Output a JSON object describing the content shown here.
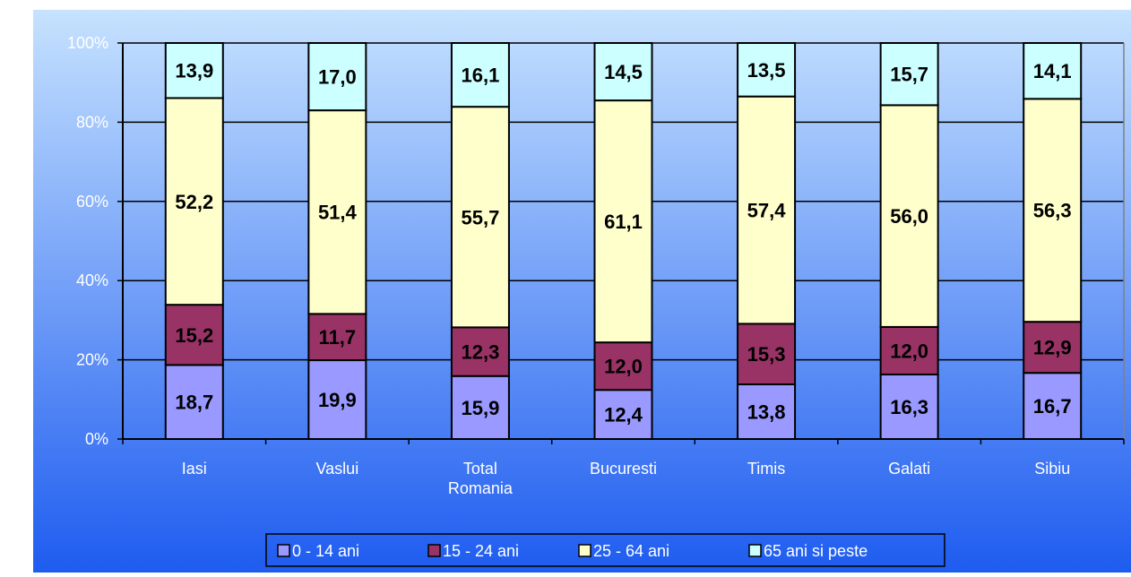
{
  "chart_data": {
    "type": "bar",
    "stacked": true,
    "percent_stacked": true,
    "categories": [
      "Iasi",
      "Vaslui",
      "Total Romania",
      "Bucuresti",
      "Timis",
      "Galati",
      "Sibiu"
    ],
    "category_labels": [
      [
        "Iasi"
      ],
      [
        "Vaslui"
      ],
      [
        "Total",
        "Romania"
      ],
      [
        "Bucuresti"
      ],
      [
        "Timis"
      ],
      [
        "Galati"
      ],
      [
        "Sibiu"
      ]
    ],
    "series": [
      {
        "name": "0 - 14 ani",
        "values": [
          18.7,
          19.9,
          15.9,
          12.4,
          13.8,
          16.3,
          16.7
        ],
        "labels": [
          "18,7",
          "19,9",
          "15,9",
          "12,4",
          "13,8",
          "16,3",
          "16,7"
        ],
        "color": "#9999FF"
      },
      {
        "name": "15 - 24 ani",
        "values": [
          15.2,
          11.7,
          12.3,
          12.0,
          15.3,
          12.0,
          12.9
        ],
        "labels": [
          "15,2",
          "11,7",
          "12,3",
          "12,0",
          "15,3",
          "12,0",
          "12,9"
        ],
        "color": "#993366"
      },
      {
        "name": "25 - 64 ani",
        "values": [
          52.2,
          51.4,
          55.7,
          61.1,
          57.4,
          56.0,
          56.3
        ],
        "labels": [
          "52,2",
          "51,4",
          "55,7",
          "61,1",
          "57,4",
          "56,0",
          "56,3"
        ],
        "color": "#FFFFCC"
      },
      {
        "name": "65 ani si peste",
        "values": [
          13.9,
          17.0,
          16.1,
          14.5,
          13.5,
          15.7,
          14.1
        ],
        "labels": [
          "13,9",
          "17,0",
          "16,1",
          "14,5",
          "13,5",
          "15,7",
          "14,1"
        ],
        "color": "#CCFFFF"
      }
    ],
    "ylim": [
      0,
      100
    ],
    "yticks": [
      "0%",
      "20%",
      "40%",
      "60%",
      "80%",
      "100%"
    ],
    "title": "",
    "xlabel": "",
    "ylabel": "",
    "grid": true,
    "legend_position": "bottom",
    "background_gradient": [
      "#C6E2FF",
      "#1E5CF0"
    ]
  }
}
